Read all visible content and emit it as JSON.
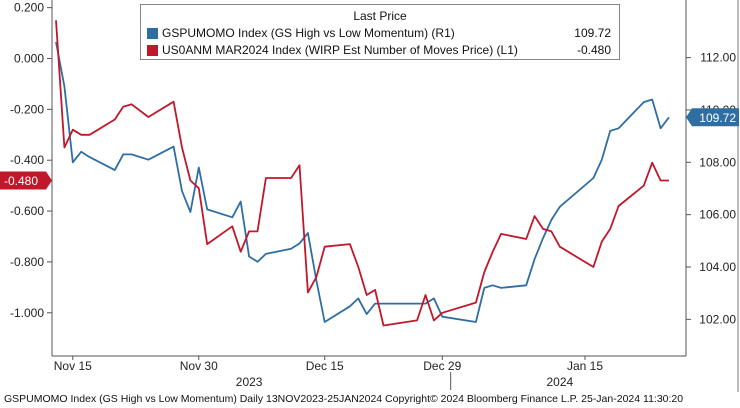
{
  "chart_data": {
    "type": "line",
    "legend": {
      "title": "Last Price",
      "placement": "top-center",
      "entries": [
        {
          "label": "GSPUMOMO Index (GS High vs Low Momentum)  (R1)",
          "value": "109.72",
          "color": "#2f6ea3"
        },
        {
          "label": "US0ANM MAR2024 Index (WIRP Est Number of Moves Price)  (L1)",
          "value": "-0.480",
          "color": "#c0182a"
        }
      ]
    },
    "x_ticks": [
      "Nov 15",
      "Nov 30",
      "Dec 15",
      "Dec 29",
      "Jan 15"
    ],
    "x_tick_dates": [
      "2023-11-15",
      "2023-11-30",
      "2023-12-15",
      "2023-12-29",
      "2024-01-15"
    ],
    "x_range": [
      "2023-11-13",
      "2024-01-25"
    ],
    "year_labels": [
      {
        "text": "2023",
        "date": "2023-12-06"
      },
      {
        "text": "2024",
        "date": "2024-01-12"
      }
    ],
    "year_divider_date": "2023-12-30",
    "left_axis": {
      "ticks": [
        "0.200",
        "0.000",
        "-0.200",
        "-0.400",
        "-0.600",
        "-0.800",
        "-1.000"
      ],
      "tick_values": [
        0.2,
        0.0,
        -0.2,
        -0.4,
        -0.6,
        -0.8,
        -1.0
      ],
      "range": [
        -1.17,
        0.23
      ]
    },
    "right_axis": {
      "ticks": [
        "112.00",
        "110.00",
        "108.00",
        "106.00",
        "104.00",
        "102.00"
      ],
      "tick_values": [
        112,
        110,
        108,
        106,
        104,
        102
      ],
      "range": [
        100.6,
        114.2
      ]
    },
    "grid": false,
    "series": [
      {
        "name": "GSPUMOMO Index (GS High vs Low Momentum)",
        "axis": "right",
        "color": "#2f6ea3",
        "last_value": "109.72",
        "points": [
          [
            "2023-11-13",
            112.6
          ],
          [
            "2023-11-14",
            110.9
          ],
          [
            "2023-11-15",
            108.0
          ],
          [
            "2023-11-16",
            108.4
          ],
          [
            "2023-11-17",
            108.2
          ],
          [
            "2023-11-20",
            107.7
          ],
          [
            "2023-11-21",
            108.3
          ],
          [
            "2023-11-22",
            108.3
          ],
          [
            "2023-11-24",
            108.1
          ],
          [
            "2023-11-27",
            108.6
          ],
          [
            "2023-11-28",
            106.9
          ],
          [
            "2023-11-29",
            106.1
          ],
          [
            "2023-11-30",
            107.8
          ],
          [
            "2023-12-01",
            106.2
          ],
          [
            "2023-12-04",
            105.9
          ],
          [
            "2023-12-05",
            106.5
          ],
          [
            "2023-12-06",
            104.4
          ],
          [
            "2023-12-07",
            104.2
          ],
          [
            "2023-12-08",
            104.5
          ],
          [
            "2023-12-11",
            104.7
          ],
          [
            "2023-12-12",
            104.9
          ],
          [
            "2023-12-13",
            105.3
          ],
          [
            "2023-12-14",
            103.5
          ],
          [
            "2023-12-15",
            101.9
          ],
          [
            "2023-12-18",
            102.5
          ],
          [
            "2023-12-19",
            102.8
          ],
          [
            "2023-12-20",
            102.2
          ],
          [
            "2023-12-21",
            102.6
          ],
          [
            "2023-12-22",
            102.6
          ],
          [
            "2023-12-26",
            102.6
          ],
          [
            "2023-12-27",
            102.6
          ],
          [
            "2023-12-28",
            102.8
          ],
          [
            "2023-12-29",
            102.1
          ],
          [
            "2024-01-02",
            101.9
          ],
          [
            "2024-01-03",
            103.2
          ],
          [
            "2024-01-04",
            103.3
          ],
          [
            "2024-01-05",
            103.2
          ],
          [
            "2024-01-08",
            103.3
          ],
          [
            "2024-01-09",
            104.3
          ],
          [
            "2024-01-10",
            105.1
          ],
          [
            "2024-01-11",
            105.8
          ],
          [
            "2024-01-12",
            106.3
          ],
          [
            "2024-01-16",
            107.4
          ],
          [
            "2024-01-17",
            108.1
          ],
          [
            "2024-01-18",
            109.2
          ],
          [
            "2024-01-19",
            109.3
          ],
          [
            "2024-01-22",
            110.3
          ],
          [
            "2024-01-23",
            110.4
          ],
          [
            "2024-01-24",
            109.3
          ],
          [
            "2024-01-25",
            109.72
          ]
        ]
      },
      {
        "name": "US0ANM MAR2024 Index (WIRP Est Number of Moves Price)",
        "axis": "left",
        "color": "#c0182a",
        "last_value": "-0.480",
        "points": [
          [
            "2023-11-13",
            0.15
          ],
          [
            "2023-11-14",
            -0.35
          ],
          [
            "2023-11-15",
            -0.28
          ],
          [
            "2023-11-16",
            -0.3
          ],
          [
            "2023-11-17",
            -0.3
          ],
          [
            "2023-11-20",
            -0.24
          ],
          [
            "2023-11-21",
            -0.19
          ],
          [
            "2023-11-22",
            -0.18
          ],
          [
            "2023-11-24",
            -0.23
          ],
          [
            "2023-11-27",
            -0.17
          ],
          [
            "2023-11-28",
            -0.35
          ],
          [
            "2023-11-29",
            -0.48
          ],
          [
            "2023-11-30",
            -0.51
          ],
          [
            "2023-12-01",
            -0.73
          ],
          [
            "2023-12-04",
            -0.66
          ],
          [
            "2023-12-05",
            -0.76
          ],
          [
            "2023-12-06",
            -0.68
          ],
          [
            "2023-12-07",
            -0.68
          ],
          [
            "2023-12-08",
            -0.47
          ],
          [
            "2023-12-11",
            -0.47
          ],
          [
            "2023-12-12",
            -0.42
          ],
          [
            "2023-12-13",
            -0.92
          ],
          [
            "2023-12-14",
            -0.86
          ],
          [
            "2023-12-15",
            -0.74
          ],
          [
            "2023-12-18",
            -0.73
          ],
          [
            "2023-12-19",
            -0.82
          ],
          [
            "2023-12-20",
            -0.93
          ],
          [
            "2023-12-21",
            -0.91
          ],
          [
            "2023-12-22",
            -1.05
          ],
          [
            "2023-12-26",
            -1.03
          ],
          [
            "2023-12-27",
            -0.93
          ],
          [
            "2023-12-28",
            -1.03
          ],
          [
            "2023-12-29",
            -1.0
          ],
          [
            "2024-01-02",
            -0.96
          ],
          [
            "2024-01-03",
            -0.84
          ],
          [
            "2024-01-04",
            -0.76
          ],
          [
            "2024-01-05",
            -0.69
          ],
          [
            "2024-01-08",
            -0.71
          ],
          [
            "2024-01-09",
            -0.62
          ],
          [
            "2024-01-10",
            -0.67
          ],
          [
            "2024-01-11",
            -0.68
          ],
          [
            "2024-01-12",
            -0.74
          ],
          [
            "2024-01-16",
            -0.82
          ],
          [
            "2024-01-17",
            -0.72
          ],
          [
            "2024-01-18",
            -0.67
          ],
          [
            "2024-01-19",
            -0.58
          ],
          [
            "2024-01-22",
            -0.5
          ],
          [
            "2024-01-23",
            -0.41
          ],
          [
            "2024-01-24",
            -0.48
          ],
          [
            "2024-01-25",
            -0.48
          ]
        ]
      }
    ]
  },
  "footer": {
    "text": "GSPUMOMO Index (GS High vs Low Momentum)  Daily 13NOV2023-25JAN2024 Copyright© 2024 Bloomberg Finance L.P.  25-Jan-2024 11:30:20"
  }
}
